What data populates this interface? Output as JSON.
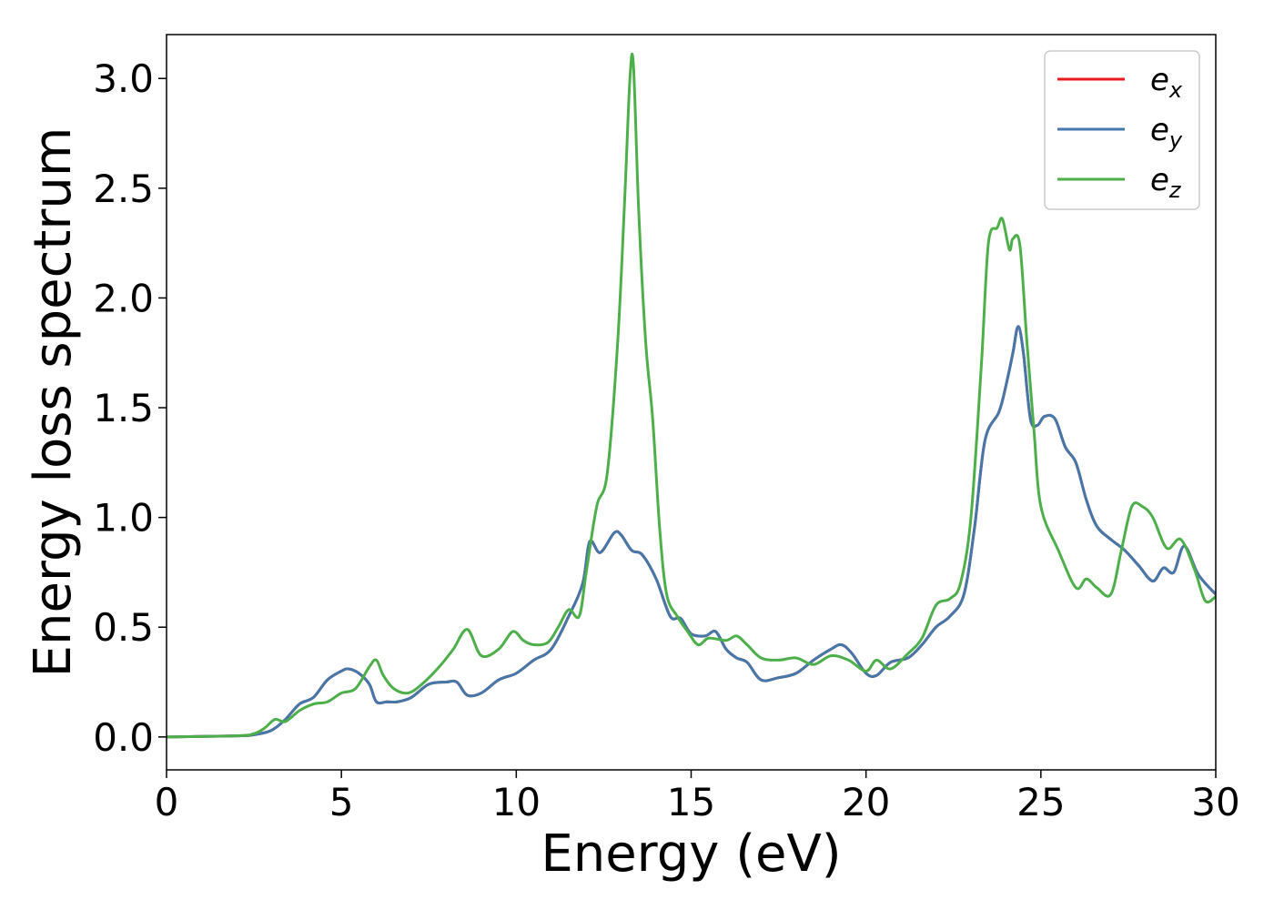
{
  "chart_data": {
    "type": "line",
    "title": "",
    "xlabel": "Energy (eV)",
    "ylabel": "Energy loss spectrum",
    "xlim": [
      0,
      30
    ],
    "ylim": [
      -0.15,
      3.2
    ],
    "xticks": [
      0,
      5,
      10,
      15,
      20,
      25,
      30
    ],
    "xtick_labels": [
      "0",
      "5",
      "10",
      "15",
      "20",
      "25",
      "30"
    ],
    "yticks": [
      0.0,
      0.5,
      1.0,
      1.5,
      2.0,
      2.5,
      3.0
    ],
    "ytick_labels": [
      "0.0",
      "0.5",
      "1.0",
      "1.5",
      "2.0",
      "2.5",
      "3.0"
    ],
    "grid": false,
    "legend_position": "top-right",
    "series": [
      {
        "name": "e",
        "subscript": "x",
        "color": "#e41a1c",
        "x": [
          0,
          2,
          2.5,
          3.0,
          3.4,
          3.8,
          4.2,
          4.6,
          5.0,
          5.2,
          5.5,
          5.8,
          6.0,
          6.3,
          6.6,
          7.0,
          7.5,
          8.0,
          8.3,
          8.6,
          9.0,
          9.5,
          10.0,
          10.5,
          11.0,
          11.5,
          11.9,
          12.1,
          12.4,
          12.8,
          13.0,
          13.3,
          13.6,
          14.0,
          14.4,
          14.7,
          15.0,
          15.4,
          15.7,
          16.0,
          16.3,
          16.6,
          17.0,
          17.5,
          18.0,
          18.5,
          19.0,
          19.3,
          19.6,
          20.0,
          20.3,
          20.7,
          21.2,
          21.6,
          22.0,
          22.4,
          22.8,
          23.1,
          23.4,
          23.8,
          24.0,
          24.2,
          24.35,
          24.5,
          24.7,
          24.9,
          25.1,
          25.4,
          25.7,
          26.0,
          26.3,
          26.6,
          27.0,
          27.4,
          27.8,
          28.2,
          28.5,
          28.8,
          29.1,
          29.5,
          30.0
        ],
        "y": [
          0.0,
          0.005,
          0.01,
          0.03,
          0.08,
          0.15,
          0.18,
          0.26,
          0.3,
          0.31,
          0.29,
          0.24,
          0.16,
          0.16,
          0.16,
          0.18,
          0.24,
          0.25,
          0.25,
          0.19,
          0.2,
          0.26,
          0.29,
          0.35,
          0.4,
          0.55,
          0.7,
          0.89,
          0.84,
          0.93,
          0.92,
          0.85,
          0.83,
          0.72,
          0.55,
          0.54,
          0.47,
          0.46,
          0.48,
          0.4,
          0.36,
          0.34,
          0.26,
          0.27,
          0.29,
          0.35,
          0.4,
          0.42,
          0.38,
          0.29,
          0.28,
          0.34,
          0.36,
          0.42,
          0.5,
          0.55,
          0.65,
          0.95,
          1.35,
          1.48,
          1.6,
          1.75,
          1.87,
          1.75,
          1.45,
          1.42,
          1.46,
          1.45,
          1.32,
          1.25,
          1.08,
          0.96,
          0.9,
          0.85,
          0.78,
          0.71,
          0.77,
          0.75,
          0.87,
          0.74,
          0.65
        ]
      },
      {
        "name": "e",
        "subscript": "y",
        "color": "#4477aa",
        "x": [
          0,
          2,
          2.5,
          3.0,
          3.4,
          3.8,
          4.2,
          4.6,
          5.0,
          5.2,
          5.5,
          5.8,
          6.0,
          6.3,
          6.6,
          7.0,
          7.5,
          8.0,
          8.3,
          8.6,
          9.0,
          9.5,
          10.0,
          10.5,
          11.0,
          11.5,
          11.9,
          12.1,
          12.4,
          12.8,
          13.0,
          13.3,
          13.6,
          14.0,
          14.4,
          14.7,
          15.0,
          15.4,
          15.7,
          16.0,
          16.3,
          16.6,
          17.0,
          17.5,
          18.0,
          18.5,
          19.0,
          19.3,
          19.6,
          20.0,
          20.3,
          20.7,
          21.2,
          21.6,
          22.0,
          22.4,
          22.8,
          23.1,
          23.4,
          23.8,
          24.0,
          24.2,
          24.35,
          24.5,
          24.7,
          24.9,
          25.1,
          25.4,
          25.7,
          26.0,
          26.3,
          26.6,
          27.0,
          27.4,
          27.8,
          28.2,
          28.5,
          28.8,
          29.1,
          29.5,
          30.0
        ],
        "y": [
          0.0,
          0.005,
          0.01,
          0.03,
          0.08,
          0.15,
          0.18,
          0.26,
          0.3,
          0.31,
          0.29,
          0.24,
          0.16,
          0.16,
          0.16,
          0.18,
          0.24,
          0.25,
          0.25,
          0.19,
          0.2,
          0.26,
          0.29,
          0.35,
          0.4,
          0.55,
          0.7,
          0.89,
          0.84,
          0.93,
          0.92,
          0.85,
          0.83,
          0.72,
          0.55,
          0.54,
          0.47,
          0.46,
          0.48,
          0.4,
          0.36,
          0.34,
          0.26,
          0.27,
          0.29,
          0.35,
          0.4,
          0.42,
          0.38,
          0.29,
          0.28,
          0.34,
          0.36,
          0.42,
          0.5,
          0.55,
          0.65,
          0.95,
          1.35,
          1.48,
          1.6,
          1.75,
          1.87,
          1.75,
          1.45,
          1.42,
          1.46,
          1.45,
          1.32,
          1.25,
          1.08,
          0.96,
          0.9,
          0.85,
          0.78,
          0.71,
          0.77,
          0.75,
          0.87,
          0.74,
          0.65
        ]
      },
      {
        "name": "e",
        "subscript": "z",
        "color": "#4daf4a",
        "x": [
          0,
          2,
          2.5,
          2.8,
          3.1,
          3.4,
          3.8,
          4.2,
          4.6,
          5.0,
          5.4,
          5.8,
          6.0,
          6.2,
          6.5,
          6.9,
          7.3,
          7.8,
          8.2,
          8.6,
          9.0,
          9.5,
          9.9,
          10.2,
          10.5,
          10.9,
          11.2,
          11.5,
          11.8,
          12.0,
          12.3,
          12.6,
          12.9,
          13.1,
          13.25,
          13.35,
          13.5,
          13.7,
          13.9,
          14.1,
          14.3,
          14.6,
          14.9,
          15.2,
          15.5,
          16.0,
          16.3,
          16.6,
          17.0,
          17.5,
          18.0,
          18.5,
          19.0,
          19.5,
          20.0,
          20.3,
          20.7,
          21.2,
          21.6,
          22.0,
          22.4,
          22.7,
          23.0,
          23.3,
          23.5,
          23.75,
          23.9,
          24.1,
          24.2,
          24.4,
          24.6,
          24.8,
          25.0,
          25.5,
          26.0,
          26.3,
          26.6,
          27.0,
          27.3,
          27.6,
          27.9,
          28.2,
          28.6,
          29.0,
          29.4,
          29.7,
          30.0
        ],
        "y": [
          0.0,
          0.005,
          0.015,
          0.04,
          0.08,
          0.07,
          0.12,
          0.15,
          0.16,
          0.2,
          0.22,
          0.32,
          0.35,
          0.28,
          0.22,
          0.2,
          0.24,
          0.32,
          0.4,
          0.49,
          0.37,
          0.4,
          0.48,
          0.44,
          0.42,
          0.43,
          0.5,
          0.58,
          0.55,
          0.75,
          1.05,
          1.2,
          1.8,
          2.45,
          3.0,
          3.06,
          2.4,
          1.8,
          1.45,
          0.95,
          0.65,
          0.55,
          0.48,
          0.42,
          0.45,
          0.44,
          0.46,
          0.42,
          0.36,
          0.35,
          0.36,
          0.33,
          0.37,
          0.35,
          0.3,
          0.35,
          0.31,
          0.38,
          0.45,
          0.6,
          0.63,
          0.7,
          1.0,
          1.7,
          2.25,
          2.32,
          2.36,
          2.22,
          2.27,
          2.24,
          1.8,
          1.4,
          1.05,
          0.85,
          0.68,
          0.72,
          0.68,
          0.65,
          0.85,
          1.05,
          1.05,
          1.0,
          0.86,
          0.9,
          0.76,
          0.62,
          0.64
        ]
      }
    ]
  }
}
